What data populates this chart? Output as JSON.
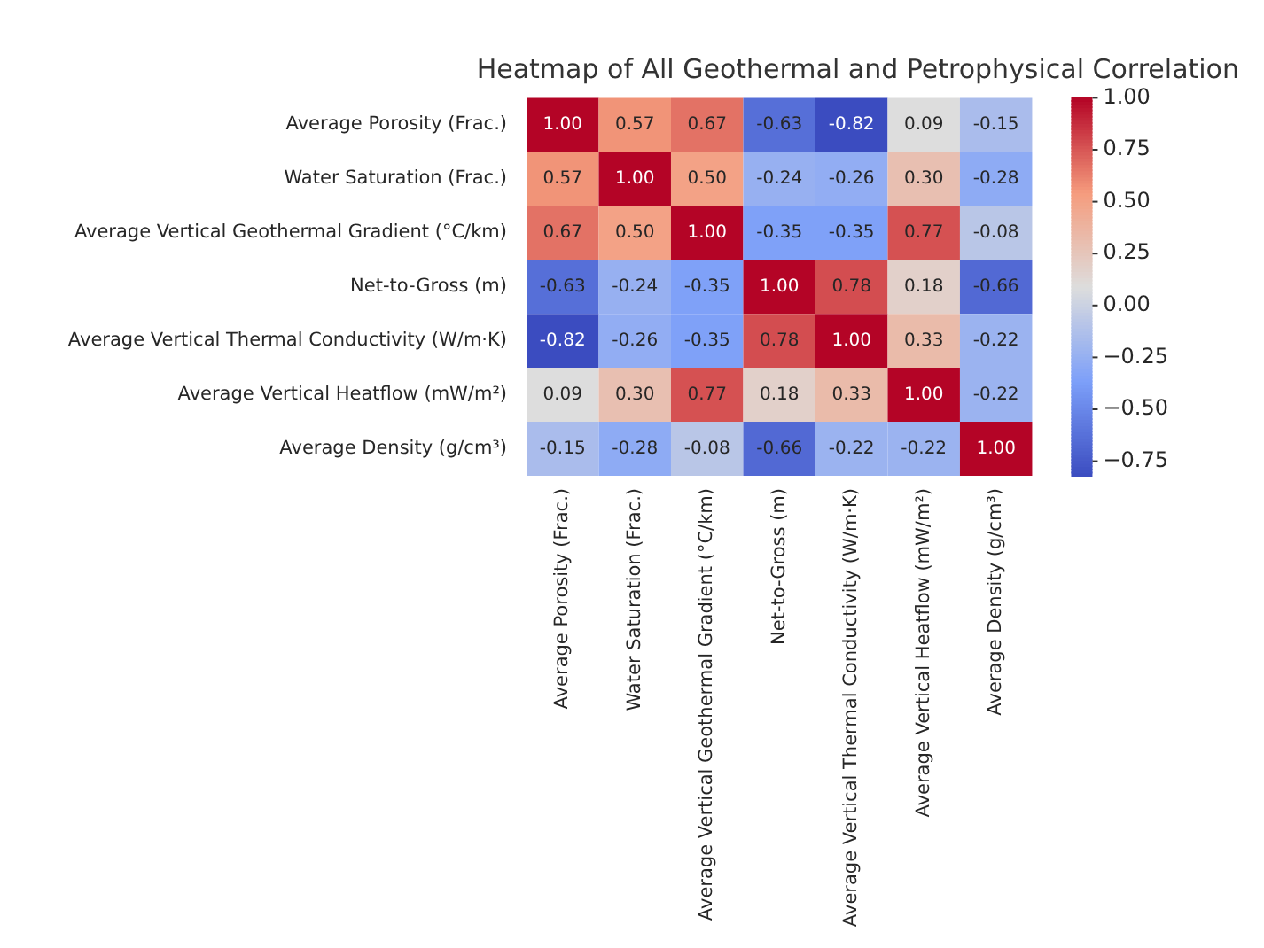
{
  "chart_data": {
    "type": "heatmap",
    "title": "Heatmap of All Geothermal and Petrophysical Correlation",
    "categories": [
      "Average Porosity (Frac.)",
      "Water Saturation (Frac.)",
      "Average Vertical Geothermal Gradient (°C/km)",
      "Net-to-Gross (m)",
      "Average Vertical Thermal Conductivity (W/m·K)",
      "Average Vertical Heatflow (mW/m²)",
      "Average Density (g/cm³)"
    ],
    "y_categories": [
      "Average Porosity (Frac.)",
      "Water Saturation (Frac.)",
      "Average Vertical Geothermal Gradient (°C/km)",
      "Net-to-Gross (m)",
      "Average Vertical Thermal Conductivity (W/m·K)",
      "Average Vertical Heatflow (mW/m²)",
      "Average Density (g/cm³)"
    ],
    "cells": [
      [
        1.0,
        0.57,
        0.67,
        -0.63,
        -0.82,
        0.09,
        -0.15
      ],
      [
        0.57,
        1.0,
        0.5,
        -0.24,
        -0.26,
        0.3,
        -0.28
      ],
      [
        0.67,
        0.5,
        1.0,
        -0.35,
        -0.35,
        0.77,
        -0.08
      ],
      [
        -0.63,
        -0.24,
        -0.35,
        1.0,
        0.78,
        0.18,
        -0.66
      ],
      [
        -0.82,
        -0.26,
        -0.35,
        0.78,
        1.0,
        0.33,
        -0.22
      ],
      [
        0.09,
        0.3,
        0.77,
        0.18,
        0.33,
        1.0,
        -0.22
      ],
      [
        -0.15,
        -0.28,
        -0.08,
        -0.66,
        -0.22,
        -0.22,
        1.0
      ]
    ],
    "cell_labels": [
      [
        "1.00",
        "0.57",
        "0.67",
        "-0.63",
        "-0.82",
        "0.09",
        "-0.15"
      ],
      [
        "0.57",
        "1.00",
        "0.50",
        "-0.24",
        "-0.26",
        "0.30",
        "-0.28"
      ],
      [
        "0.67",
        "0.50",
        "1.00",
        "-0.35",
        "-0.35",
        "0.77",
        "-0.08"
      ],
      [
        "-0.63",
        "-0.24",
        "-0.35",
        "1.00",
        "0.78",
        "0.18",
        "-0.66"
      ],
      [
        "-0.82",
        "-0.26",
        "-0.35",
        "0.78",
        "1.00",
        "0.33",
        "-0.22"
      ],
      [
        "0.09",
        "0.30",
        "0.77",
        "0.18",
        "0.33",
        "1.00",
        "-0.22"
      ],
      [
        "-0.15",
        "-0.28",
        "-0.08",
        "-0.66",
        "-0.22",
        "-0.22",
        "1.00"
      ]
    ],
    "clim": [
      -0.82,
      1.0
    ],
    "cticks": [
      {
        "value": -0.75,
        "label": "−0.75"
      },
      {
        "value": -0.5,
        "label": "−0.50"
      },
      {
        "value": -0.25,
        "label": "−0.25"
      },
      {
        "value": 0,
        "label": "0.00"
      },
      {
        "value": 0.25,
        "label": "0.25"
      },
      {
        "value": 0.5,
        "label": "0.50"
      },
      {
        "value": 0.75,
        "label": "0.75"
      },
      {
        "value": 1,
        "label": "1.00"
      }
    ]
  }
}
